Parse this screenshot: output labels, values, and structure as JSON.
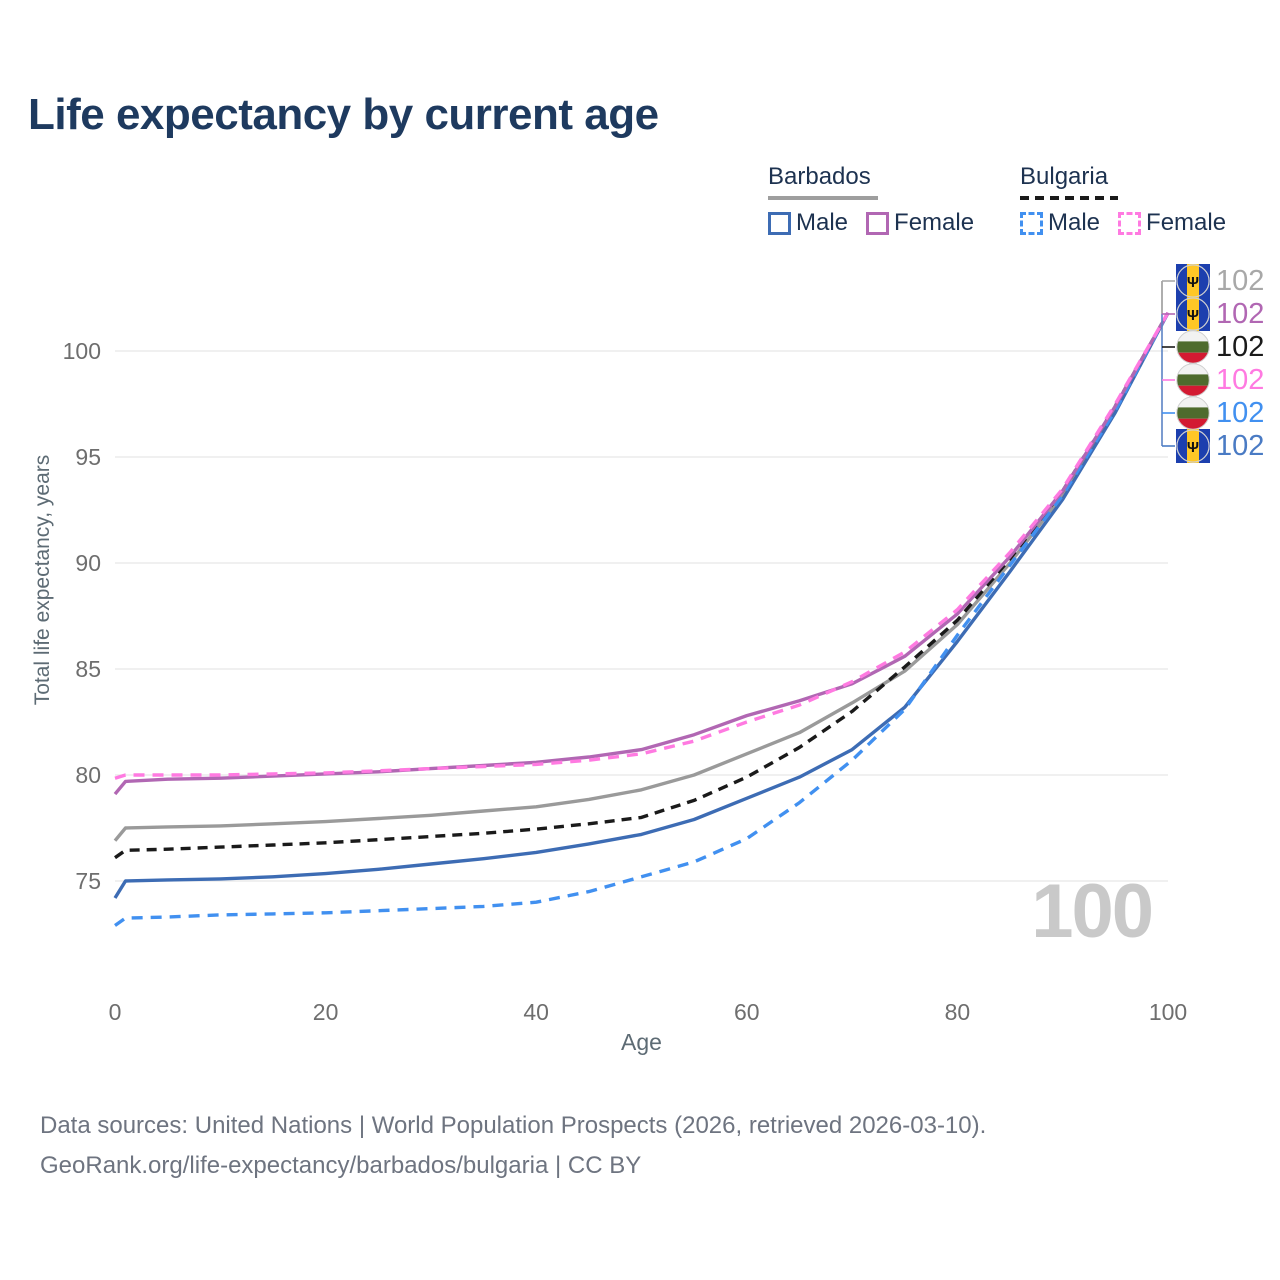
{
  "title": "Life expectancy by current age",
  "watermark": "100",
  "legend": {
    "groups": [
      {
        "name": "Barbados",
        "underline_style": "solid",
        "underline_color": "#9e9e9e",
        "items": [
          {
            "label": "Male",
            "color": "#3d6cb4",
            "dash": false
          },
          {
            "label": "Female",
            "color": "#b167b3",
            "dash": false
          }
        ]
      },
      {
        "name": "Bulgaria",
        "underline_style": "dashed",
        "underline_color": "#1a1a1a",
        "items": [
          {
            "label": "Male",
            "color": "#4190f0",
            "dash": true
          },
          {
            "label": "Female",
            "color": "#ff7ae1",
            "dash": true
          }
        ]
      }
    ]
  },
  "chart_data": {
    "type": "line",
    "title": "Life expectancy by current age",
    "xlabel": "Age",
    "ylabel": "Total life expectancy, years",
    "xlim": [
      0,
      100
    ],
    "ylim": [
      72,
      103
    ],
    "xticks": [
      0,
      20,
      40,
      60,
      80,
      100
    ],
    "yticks": [
      75,
      80,
      85,
      90,
      95,
      100
    ],
    "grid": true,
    "legend_position": "top-right",
    "x": [
      0,
      1,
      5,
      10,
      15,
      20,
      25,
      30,
      35,
      40,
      45,
      50,
      55,
      60,
      65,
      70,
      75,
      80,
      85,
      90,
      95,
      100
    ],
    "series": [
      {
        "name": "Barbados",
        "sex": "both",
        "color": "#9a9a9a",
        "dash": false,
        "values": [
          76.9,
          77.5,
          77.55,
          77.6,
          77.7,
          77.8,
          77.95,
          78.1,
          78.3,
          78.5,
          78.85,
          79.3,
          80.0,
          81.0,
          82.0,
          83.4,
          84.9,
          87.1,
          90.0,
          93.2,
          97.2,
          101.8
        ]
      },
      {
        "name": "Bulgaria",
        "sex": "both",
        "color": "#1a1a1a",
        "dash": true,
        "values": [
          76.1,
          76.45,
          76.5,
          76.6,
          76.7,
          76.8,
          76.95,
          77.1,
          77.25,
          77.45,
          77.7,
          78.0,
          78.8,
          79.9,
          81.3,
          83.0,
          85.1,
          87.3,
          90.2,
          93.4,
          97.4,
          101.8
        ]
      },
      {
        "name": "Barbados",
        "sex": "male",
        "color": "#3d6cb4",
        "dash": false,
        "values": [
          74.2,
          75.0,
          75.05,
          75.1,
          75.2,
          75.35,
          75.55,
          75.8,
          76.05,
          76.35,
          76.75,
          77.2,
          77.9,
          78.9,
          79.9,
          81.2,
          83.2,
          86.3,
          89.6,
          93.0,
          97.1,
          101.8
        ]
      },
      {
        "name": "Bulgaria",
        "sex": "male",
        "color": "#4190f0",
        "dash": true,
        "values": [
          72.9,
          73.25,
          73.3,
          73.4,
          73.45,
          73.5,
          73.6,
          73.7,
          73.8,
          74.0,
          74.5,
          75.2,
          75.9,
          77.0,
          78.7,
          80.7,
          83.1,
          86.6,
          89.9,
          93.2,
          97.2,
          101.8
        ]
      },
      {
        "name": "Barbados",
        "sex": "female",
        "color": "#b167b3",
        "dash": false,
        "values": [
          79.1,
          79.7,
          79.8,
          79.85,
          79.95,
          80.05,
          80.15,
          80.3,
          80.45,
          80.6,
          80.85,
          81.2,
          81.9,
          82.8,
          83.5,
          84.3,
          85.6,
          87.6,
          90.3,
          93.4,
          97.4,
          101.8
        ]
      },
      {
        "name": "Bulgaria",
        "sex": "female",
        "color": "#ff7ae1",
        "dash": true,
        "values": [
          79.85,
          80.0,
          80.0,
          80.0,
          80.05,
          80.1,
          80.2,
          80.3,
          80.4,
          80.5,
          80.7,
          81.0,
          81.6,
          82.5,
          83.3,
          84.4,
          85.8,
          87.8,
          90.5,
          93.5,
          97.5,
          101.8
        ]
      }
    ]
  },
  "end_labels": [
    {
      "flag": "barbados",
      "value": "102",
      "color": "#a8a8a8"
    },
    {
      "flag": "barbados",
      "value": "102",
      "color": "#b167b3"
    },
    {
      "flag": "bulgaria",
      "value": "102",
      "color": "#1a1a1a"
    },
    {
      "flag": "bulgaria",
      "value": "102",
      "color": "#ff7ae1"
    },
    {
      "flag": "bulgaria",
      "value": "102",
      "color": "#4190f0"
    },
    {
      "flag": "barbados",
      "value": "102",
      "color": "#4a7bc4"
    }
  ],
  "flag_colors": {
    "barbados": {
      "blue": "#1c3fae",
      "yellow": "#ffc726",
      "trident": "#111111"
    },
    "bulgaria": {
      "white": "#f2f2f2",
      "green": "#4e6b2d",
      "red": "#d31a32"
    }
  },
  "footer": {
    "line1": "Data sources: United Nations | World Population Prospects (2026, retrieved 2026-03-10).",
    "line2": "GeoRank.org/life-expectancy/barbados/bulgaria | CC BY"
  }
}
